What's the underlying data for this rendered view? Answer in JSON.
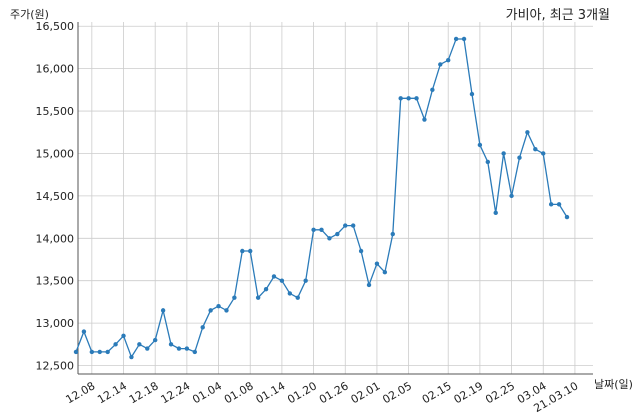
{
  "chart_data": {
    "type": "line",
    "title": "가비아, 최근 3개월",
    "ylabel": "주가(원)",
    "xlabel": "날짜(일)",
    "ylim": [
      12400,
      16550
    ],
    "y_ticks": [
      12500,
      13000,
      13500,
      14000,
      14500,
      15000,
      15500,
      16000,
      16500
    ],
    "y_tick_labels": [
      "12,500",
      "13,000",
      "13,500",
      "14,000",
      "14,500",
      "15,000",
      "15,500",
      "16,000",
      "16,500"
    ],
    "x_tick_labels": [
      "12.08",
      "12.14",
      "12.18",
      "12.24",
      "01.04",
      "01.08",
      "01.14",
      "01.20",
      "01.26",
      "02.01",
      "02.05",
      "02.15",
      "02.19",
      "02.25",
      "03.04",
      "21.03.10"
    ],
    "x_tick_index": [
      2,
      6,
      10,
      14,
      18,
      22,
      26,
      30,
      34,
      38,
      42,
      47,
      51,
      55,
      59,
      63
    ],
    "grid": true,
    "color": "#2b7bb9",
    "series": [
      {
        "values": [
          12660,
          12900,
          12660,
          12660,
          12660,
          12750,
          12850,
          12600,
          12750,
          12700,
          12800,
          13150,
          12750,
          12700,
          12700,
          12660,
          12950,
          13150,
          13200,
          13150,
          13300,
          13850,
          13850,
          13300,
          13400,
          13550,
          13500,
          13350,
          13300,
          13500,
          14100,
          14100,
          14000,
          14050,
          14150,
          14150,
          13850,
          13450,
          13700,
          13600,
          14050,
          15650,
          15650,
          15650,
          15400,
          15750,
          16050,
          16100,
          16350,
          16350,
          15700,
          15100,
          14900,
          14300,
          15000,
          14500,
          14950,
          15250,
          15050,
          15000,
          14400,
          14400,
          14250
        ]
      }
    ]
  }
}
